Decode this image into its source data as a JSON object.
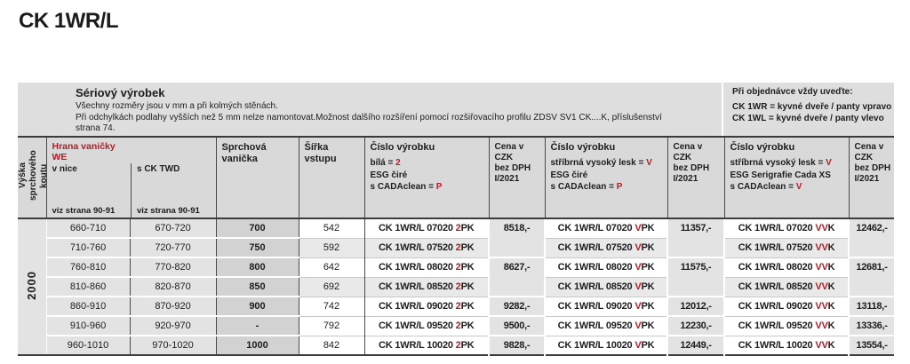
{
  "page_title": "CK 1WR/L",
  "colors": {
    "accent_red": "#b21e28",
    "band_gray": "#dedede",
    "header_gray": "#d9d9d9"
  },
  "info_band": {
    "heading": "Sériový výrobek",
    "lines": [
      "Všechny rozměry jsou v mm a při kolmých stěnách.",
      "Při odchylkách podlahy vyšších než 5 mm nelze namontovat.Možnost dalšího rozšíření pomocí rozšiřovacího profilu ZDSV SV1 CK....K, příslušenství",
      "strana 74."
    ],
    "order_note": {
      "heading": "Při objednávce vždy uveďte:",
      "line1": "CK 1WR = kyvné dveře / panty vpravo",
      "line2": "CK 1WL = kyvné dveře / panty vlevo"
    }
  },
  "table": {
    "header": {
      "height_label": "Výška sprchového koutu",
      "hrana": {
        "title": "Hrana vaničky",
        "subtitle": "WE",
        "col1": "v nice",
        "col2": "s CK TWD",
        "ref": "viz strana 90-91"
      },
      "vanicka": "Sprchová vanička",
      "sirka": "Šířka vstupu",
      "price_col": {
        "l1": "Cena v CZK",
        "l2": "bez DPH",
        "l3": "I/2021"
      },
      "code_cols": [
        {
          "title": "Číslo výrobku",
          "l1_text": "bílá = ",
          "l1_red": "2",
          "l2": "ESG čiré",
          "l3_text": "s CADAclean = ",
          "l3_red": "P"
        },
        {
          "title": "Číslo výrobku",
          "l1_text": "stříbrná vysoký lesk = ",
          "l1_red": "V",
          "l2": "ESG čiré",
          "l3_text": "s CADAclean = ",
          "l3_red": "P"
        },
        {
          "title": "Číslo výrobku",
          "l1_text": "stříbrná vysoký lesk = ",
          "l1_red": "V",
          "l2": "ESG Serigrafie Cada XS",
          "l3_text": "s CADAclean = ",
          "l3_red": "V"
        }
      ]
    },
    "height_value": "2000",
    "rows": [
      {
        "v_nice": "660-710",
        "s_twd": "670-720",
        "vanicka": "700",
        "sirka": "542",
        "codes": [
          {
            "base": "CK 1WR/L 07020 ",
            "red": "2",
            "rest": "PK"
          },
          {
            "base": "CK 1WR/L 07020 ",
            "red": "V",
            "rest": "PK"
          },
          {
            "base": "CK 1WR/L 07020 ",
            "red": "VV",
            "rest": "K"
          }
        ],
        "prices": [
          "8518,-",
          "11357,-",
          "12462,-"
        ],
        "price_rowspan": 2,
        "shaded": false
      },
      {
        "v_nice": "710-760",
        "s_twd": "720-770",
        "vanicka": "750",
        "sirka": "592",
        "codes": [
          {
            "base": "CK 1WR/L 07520 ",
            "red": "2",
            "rest": "PK"
          },
          {
            "base": "CK 1WR/L 07520 ",
            "red": "V",
            "rest": "PK"
          },
          {
            "base": "CK 1WR/L 07520 ",
            "red": "VV",
            "rest": "K"
          }
        ],
        "prices": null,
        "shaded": true
      },
      {
        "v_nice": "760-810",
        "s_twd": "770-820",
        "vanicka": "800",
        "sirka": "642",
        "codes": [
          {
            "base": "CK 1WR/L 08020 ",
            "red": "2",
            "rest": "PK"
          },
          {
            "base": "CK 1WR/L 08020 ",
            "red": "V",
            "rest": "PK"
          },
          {
            "base": "CK 1WR/L 08020 ",
            "red": "VV",
            "rest": "K"
          }
        ],
        "prices": [
          "8627,-",
          "11575,-",
          "12681,-"
        ],
        "price_rowspan": 2,
        "shaded": false
      },
      {
        "v_nice": "810-860",
        "s_twd": "820-870",
        "vanicka": "850",
        "sirka": "692",
        "codes": [
          {
            "base": "CK 1WR/L 08520 ",
            "red": "2",
            "rest": "PK"
          },
          {
            "base": "CK 1WR/L 08520 ",
            "red": "V",
            "rest": "PK"
          },
          {
            "base": "CK 1WR/L 08520 ",
            "red": "VV",
            "rest": "K"
          }
        ],
        "prices": null,
        "shaded": true
      },
      {
        "v_nice": "860-910",
        "s_twd": "870-920",
        "vanicka": "900",
        "sirka": "742",
        "codes": [
          {
            "base": "CK 1WR/L 09020 ",
            "red": "2",
            "rest": "PK"
          },
          {
            "base": "CK 1WR/L 09020 ",
            "red": "V",
            "rest": "PK"
          },
          {
            "base": "CK 1WR/L 09020 ",
            "red": "VV",
            "rest": "K"
          }
        ],
        "prices": [
          "9282,-",
          "12012,-",
          "13118,-"
        ],
        "price_rowspan": 1,
        "shaded": false
      },
      {
        "v_nice": "910-960",
        "s_twd": "920-970",
        "vanicka": "-",
        "sirka": "792",
        "codes": [
          {
            "base": "CK 1WR/L 09520 ",
            "red": "2",
            "rest": "PK"
          },
          {
            "base": "CK 1WR/L 09520 ",
            "red": "V",
            "rest": "PK"
          },
          {
            "base": "CK 1WR/L 09520 ",
            "red": "VV",
            "rest": "K"
          }
        ],
        "prices": [
          "9500,-",
          "12230,-",
          "13336,-"
        ],
        "price_rowspan": 1,
        "shaded": false
      },
      {
        "v_nice": "960-1010",
        "s_twd": "970-1020",
        "vanicka": "1000",
        "sirka": "842",
        "codes": [
          {
            "base": "CK 1WR/L 10020 ",
            "red": "2",
            "rest": "PK"
          },
          {
            "base": "CK 1WR/L 10020 ",
            "red": "V",
            "rest": "PK"
          },
          {
            "base": "CK 1WR/L 10020 ",
            "red": "VV",
            "rest": "K"
          }
        ],
        "prices": [
          "9828,-",
          "12449,-",
          "13554,-"
        ],
        "price_rowspan": 1,
        "shaded": false
      }
    ]
  }
}
